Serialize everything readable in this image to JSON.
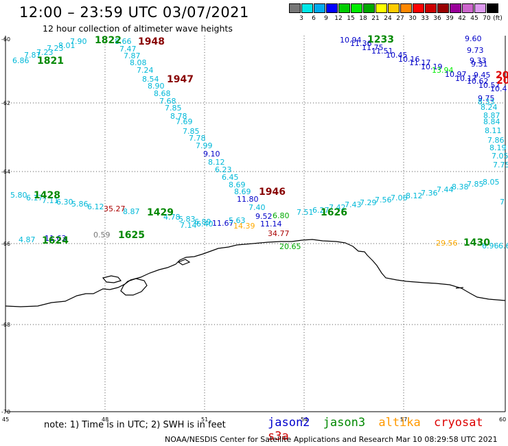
{
  "title": "12:00 – 23:59 UTC 03/07/2021",
  "subtitle": "12 hour collection of altimeter wave heights",
  "colorbar": {
    "unit": "(ft)",
    "ticks": [
      "3",
      "6",
      "9",
      "12",
      "15",
      "18",
      "21",
      "24",
      "27",
      "30",
      "33",
      "36",
      "39",
      "42",
      "45",
      "70"
    ],
    "colors": [
      "#777777",
      "#00e8e8",
      "#00aaee",
      "#0000ff",
      "#00cc00",
      "#00ee00",
      "#00aa00",
      "#ffff00",
      "#ffcc00",
      "#ff8800",
      "#ff0000",
      "#cc0000",
      "#990000",
      "#990099",
      "#cc66cc",
      "#dd99ee",
      "#000000"
    ]
  },
  "axes": {
    "lon_labels": [
      "45",
      "48",
      "51",
      "54",
      "57",
      "60"
    ],
    "lat_labels": [
      "-60",
      "-62",
      "-64",
      "-66",
      "-68",
      "-70"
    ]
  },
  "observations": [
    {
      "t": "7.90",
      "c": "#00b8d8"
    },
    {
      "t": "8.01",
      "c": "#00b8d8"
    },
    {
      "t": "7.23",
      "c": "#00b8d8"
    },
    {
      "t": "7.23",
      "c": "#00b8d8"
    },
    {
      "t": "7.87",
      "c": "#00b8d8"
    },
    {
      "t": "6.86",
      "c": "#00b8d8"
    },
    {
      "t": "8.66",
      "c": "#00b8d8"
    },
    {
      "t": "7.47",
      "c": "#00b8d8"
    },
    {
      "t": "7.87",
      "c": "#00b8d8"
    },
    {
      "t": "8.08",
      "c": "#00b8d8"
    },
    {
      "t": "7.24",
      "c": "#00b8d8"
    },
    {
      "t": "8.54",
      "c": "#00b8d8"
    },
    {
      "t": "8.90",
      "c": "#00b8d8"
    },
    {
      "t": "8.68",
      "c": "#00b8d8"
    },
    {
      "t": "7.68",
      "c": "#00b8d8"
    },
    {
      "t": "7.85",
      "c": "#00b8d8"
    },
    {
      "t": "8.78",
      "c": "#00b8d8"
    },
    {
      "t": "7.69",
      "c": "#00b8d8"
    },
    {
      "t": "7.85",
      "c": "#00b8d8"
    },
    {
      "t": "7.78",
      "c": "#00b8d8"
    },
    {
      "t": "7.99",
      "c": "#00b8d8"
    },
    {
      "t": "9.10",
      "c": "#0000c8"
    },
    {
      "t": "8.12",
      "c": "#00b8d8"
    },
    {
      "t": "6.23",
      "c": "#00b8d8"
    },
    {
      "t": "6.45",
      "c": "#00b8d8"
    },
    {
      "t": "8.69",
      "c": "#00b8d8"
    },
    {
      "t": "8.69",
      "c": "#00b8d8"
    },
    {
      "t": "11.80",
      "c": "#0000c8"
    },
    {
      "t": "7.40",
      "c": "#00b8d8"
    },
    {
      "t": "9.52",
      "c": "#0000c8"
    },
    {
      "t": "11.14",
      "c": "#0000c8"
    },
    {
      "t": "34.77",
      "c": "#aa0000"
    },
    {
      "t": "20.65",
      "c": "#00aa00"
    },
    {
      "t": "5.80",
      "c": "#00b8d8"
    },
    {
      "t": "6.17",
      "c": "#00b8d8"
    },
    {
      "t": "7.11",
      "c": "#00b8d8"
    },
    {
      "t": "6.30",
      "c": "#00b8d8"
    },
    {
      "t": "5.86",
      "c": "#00b8d8"
    },
    {
      "t": "6.12",
      "c": "#00b8d8"
    },
    {
      "t": "35.27",
      "c": "#aa0000"
    },
    {
      "t": "8.87",
      "c": "#00b8d8"
    },
    {
      "t": "4.78",
      "c": "#00b8d8"
    },
    {
      "t": "5.83",
      "c": "#00b8d8"
    },
    {
      "t": "6.89",
      "c": "#00b8d8"
    },
    {
      "t": "7.14",
      "c": "#00b8d8"
    },
    {
      "t": "6.40",
      "c": "#00b8d8"
    },
    {
      "t": "11.67",
      "c": "#0000c8"
    },
    {
      "t": "5.63",
      "c": "#00b8d8"
    },
    {
      "t": "14.39",
      "c": "#ffaa00"
    },
    {
      "t": "6.80",
      "c": "#00aa00"
    },
    {
      "t": "7.51",
      "c": "#00b8d8"
    },
    {
      "t": "6.27",
      "c": "#00b8d8"
    },
    {
      "t": "7.42",
      "c": "#00b8d8"
    },
    {
      "t": "7.43",
      "c": "#00b8d8"
    },
    {
      "t": "7.29",
      "c": "#00b8d8"
    },
    {
      "t": "7.56",
      "c": "#00b8d8"
    },
    {
      "t": "7.06",
      "c": "#00b8d8"
    },
    {
      "t": "8.12",
      "c": "#00b8d8"
    },
    {
      "t": "7.36",
      "c": "#00b8d8"
    },
    {
      "t": "7.44",
      "c": "#00b8d8"
    },
    {
      "t": "8.38",
      "c": "#00b8d8"
    },
    {
      "t": "7.85",
      "c": "#00b8d8"
    },
    {
      "t": "8.05",
      "c": "#00b8d8"
    },
    {
      "t": "4.87",
      "c": "#00b8d8"
    },
    {
      "t": "11.63",
      "c": "#0000c8"
    },
    {
      "t": "0.59",
      "c": "#777777"
    },
    {
      "t": "10.94",
      "c": "#0000c8"
    },
    {
      "t": "11.36",
      "c": "#0000c8"
    },
    {
      "t": "11.75",
      "c": "#0000c8"
    },
    {
      "t": "11.51",
      "c": "#0000c8"
    },
    {
      "t": "10.45",
      "c": "#0000c8"
    },
    {
      "t": "10.16",
      "c": "#0000c8"
    },
    {
      "t": "11.17",
      "c": "#0000c8"
    },
    {
      "t": "10.19",
      "c": "#0000c8"
    },
    {
      "t": "13.94",
      "c": "#00ee00"
    },
    {
      "t": "10.97",
      "c": "#0000c8"
    },
    {
      "t": "10.17",
      "c": "#0000c8"
    },
    {
      "t": "10.62",
      "c": "#0000c8"
    },
    {
      "t": "10.57",
      "c": "#0000c8"
    },
    {
      "t": "10.4",
      "c": "#0000c8"
    },
    {
      "t": "9.60",
      "c": "#0000c8"
    },
    {
      "t": "9.73",
      "c": "#0000c8"
    },
    {
      "t": "9.33",
      "c": "#0000c8"
    },
    {
      "t": "9.31",
      "c": "#0000c8"
    },
    {
      "t": "9.45",
      "c": "#0000c8"
    },
    {
      "t": "9.75",
      "c": "#0000c8"
    },
    {
      "t": "8.33",
      "c": "#00b8d8"
    },
    {
      "t": "8.24",
      "c": "#00b8d8"
    },
    {
      "t": "8.87",
      "c": "#00b8d8"
    },
    {
      "t": "8.84",
      "c": "#00b8d8"
    },
    {
      "t": "8.11",
      "c": "#00b8d8"
    },
    {
      "t": "7.86",
      "c": "#00b8d8"
    },
    {
      "t": "8.19",
      "c": "#00b8d8"
    },
    {
      "t": "7.05",
      "c": "#00b8d8"
    },
    {
      "t": "7.75",
      "c": "#00b8d8"
    },
    {
      "t": "7",
      "c": "#00b8d8"
    },
    {
      "t": "29.56",
      "c": "#ffaa00"
    },
    {
      "t": "6.96",
      "c": "#00b8d8"
    },
    {
      "t": "6.6",
      "c": "#00b8d8"
    }
  ],
  "pass_times": [
    {
      "t": "1822",
      "c": "#008800"
    },
    {
      "t": "1948",
      "c": "#880000"
    },
    {
      "t": "1821",
      "c": "#008800"
    },
    {
      "t": "1947",
      "c": "#880000"
    },
    {
      "t": "1946",
      "c": "#880000"
    },
    {
      "t": "1428",
      "c": "#008800"
    },
    {
      "t": "1429",
      "c": "#008800"
    },
    {
      "t": "1625",
      "c": "#008800"
    },
    {
      "t": "1624",
      "c": "#008800"
    },
    {
      "t": "1626",
      "c": "#008800"
    },
    {
      "t": "1233",
      "c": "#008800"
    },
    {
      "t": "1430",
      "c": "#008800"
    },
    {
      "t": "20",
      "c": "#dd0000"
    },
    {
      "t": "20",
      "c": "#dd0000"
    }
  ],
  "note": "note:  1) Time is in UTC;  2) SWH is in feet",
  "satellites": [
    {
      "name": "jason2",
      "color": "#0000cc"
    },
    {
      "name": "jason3",
      "color": "#008800"
    },
    {
      "name": "altika",
      "color": "#ff9900"
    },
    {
      "name": "cryosat",
      "color": "#dd0000"
    },
    {
      "name": "s3a",
      "color": "#cc0000"
    }
  ],
  "credit": "NOAA/NESDIS Center for Satellite Applications and Research    Mar 10 08:29:58 UTC 2021"
}
